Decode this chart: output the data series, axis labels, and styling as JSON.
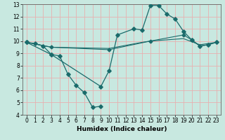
{
  "xlabel": "Humidex (Indice chaleur)",
  "bg_color": "#c8e8e0",
  "grid_color": "#e8b0b0",
  "line_color": "#1a6b6b",
  "xlim": [
    -0.5,
    23.5
  ],
  "ylim": [
    4,
    13
  ],
  "xticks": [
    0,
    1,
    2,
    3,
    4,
    5,
    6,
    7,
    8,
    9,
    10,
    11,
    12,
    13,
    14,
    15,
    16,
    17,
    18,
    19,
    20,
    21,
    22,
    23
  ],
  "yticks": [
    4,
    5,
    6,
    7,
    8,
    9,
    10,
    11,
    12,
    13
  ],
  "line1_x": [
    0,
    1,
    2,
    3,
    4,
    5,
    6,
    7,
    8,
    9
  ],
  "line1_y": [
    9.9,
    9.8,
    9.6,
    8.9,
    8.8,
    7.3,
    6.4,
    5.8,
    4.6,
    4.7
  ],
  "line2_x": [
    0,
    3,
    9,
    10,
    11,
    13,
    14,
    15,
    16,
    17,
    18,
    19,
    20,
    21,
    22,
    23
  ],
  "line2_y": [
    9.9,
    8.9,
    6.3,
    7.6,
    10.5,
    11.0,
    10.9,
    12.9,
    12.9,
    12.2,
    11.8,
    10.8,
    10.1,
    9.6,
    9.7,
    9.9
  ],
  "line3_x": [
    0,
    3,
    10,
    15,
    19,
    20,
    21,
    22,
    23
  ],
  "line3_y": [
    9.9,
    9.5,
    9.3,
    10.0,
    10.5,
    10.1,
    9.6,
    9.7,
    9.9
  ],
  "line4_x": [
    0,
    3,
    10,
    14,
    15,
    19,
    21,
    23
  ],
  "line4_y": [
    9.9,
    9.5,
    9.4,
    9.9,
    10.0,
    10.2,
    9.7,
    9.9
  ]
}
